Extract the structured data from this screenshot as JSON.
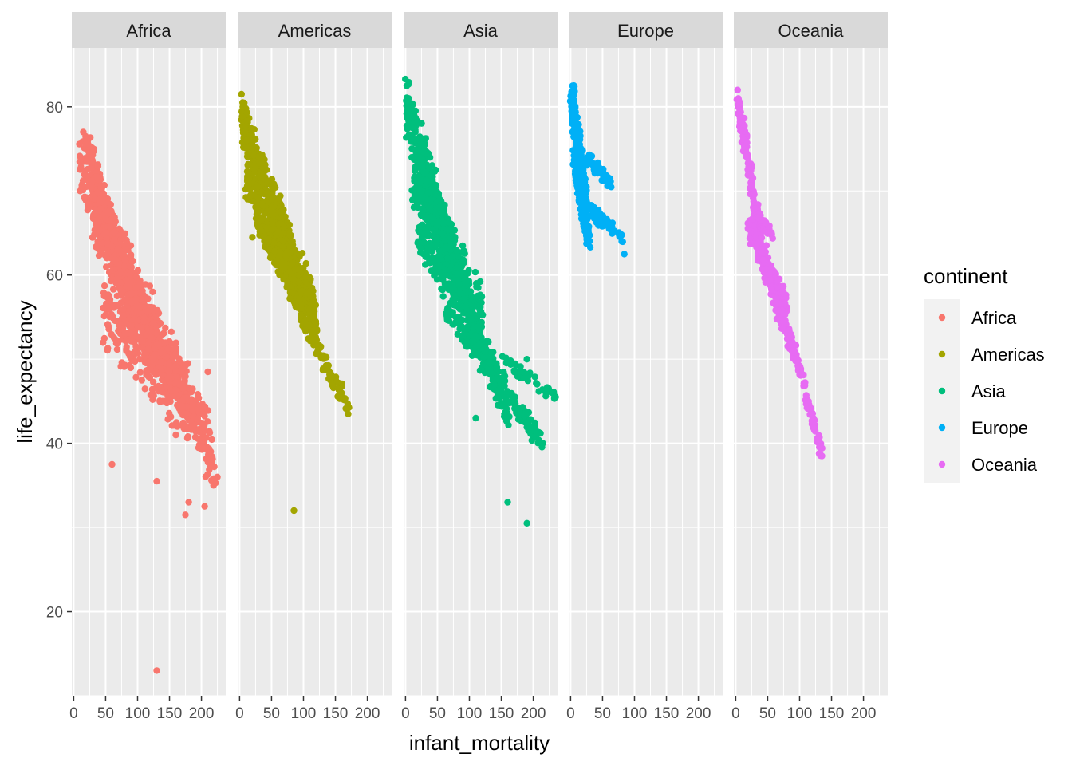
{
  "chart_data": {
    "type": "scatter",
    "facet_by": "continent",
    "xlabel": "infant_mortality",
    "ylabel": "life_expectancy",
    "xlim": [
      -3,
      238
    ],
    "ylim": [
      10,
      87
    ],
    "x_ticks": [
      0,
      50,
      100,
      150,
      200
    ],
    "y_ticks": [
      20,
      40,
      60,
      80
    ],
    "grid": true,
    "legend": {
      "title": "continent",
      "placement": "right"
    },
    "colors": {
      "Africa": "#F8766D",
      "Americas": "#A3A500",
      "Asia": "#00BF7D",
      "Europe": "#00B0F6",
      "Oceania": "#E76BF3"
    },
    "series": [
      {
        "name": "Africa",
        "bands": [
          {
            "x0": 10,
            "y0": 73,
            "x1": 120,
            "y1": 52,
            "spread": 5,
            "n": 320
          },
          {
            "x0": 30,
            "y0": 68,
            "x1": 150,
            "y1": 47,
            "spread": 5,
            "n": 320
          },
          {
            "x0": 55,
            "y0": 66,
            "x1": 215,
            "y1": 40,
            "spread": 4,
            "n": 280
          },
          {
            "x0": 45,
            "y0": 56,
            "x1": 180,
            "y1": 44,
            "spread": 5,
            "n": 240
          },
          {
            "x0": 90,
            "y0": 58,
            "x1": 220,
            "y1": 37,
            "spread": 3,
            "n": 200
          },
          {
            "x0": 20,
            "y0": 76,
            "x1": 70,
            "y1": 62,
            "spread": 3,
            "n": 120
          }
        ],
        "points": [
          [
            10,
            73.5
          ],
          [
            10,
            70
          ],
          [
            15,
            77
          ],
          [
            20,
            76
          ],
          [
            60,
            37.5
          ],
          [
            130,
            13
          ],
          [
            130,
            35.5
          ],
          [
            175,
            31.5
          ],
          [
            180,
            33
          ],
          [
            205,
            32.5
          ],
          [
            210,
            48.5
          ],
          [
            225,
            36
          ],
          [
            150,
            48
          ],
          [
            160,
            41
          ]
        ]
      },
      {
        "name": "Americas",
        "bands": [
          {
            "x0": 5,
            "y0": 78,
            "x1": 120,
            "y1": 55,
            "spread": 3,
            "n": 420
          },
          {
            "x0": 10,
            "y0": 72,
            "x1": 100,
            "y1": 56,
            "spread": 3,
            "n": 300
          },
          {
            "x0": 30,
            "y0": 66,
            "x1": 170,
            "y1": 44,
            "spread": 1.5,
            "n": 160
          }
        ],
        "points": [
          [
            3,
            81.5
          ],
          [
            5,
            80
          ],
          [
            8,
            77
          ],
          [
            85,
            32
          ],
          [
            170,
            43.5
          ],
          [
            20,
            64.5
          ]
        ]
      },
      {
        "name": "Asia",
        "bands": [
          {
            "x0": 2,
            "y0": 80,
            "x1": 80,
            "y1": 60,
            "spread": 4,
            "n": 420
          },
          {
            "x0": 10,
            "y0": 72,
            "x1": 120,
            "y1": 55,
            "spread": 4,
            "n": 320
          },
          {
            "x0": 20,
            "y0": 65,
            "x1": 160,
            "y1": 46,
            "spread": 2.5,
            "n": 200
          },
          {
            "x0": 60,
            "y0": 56,
            "x1": 215,
            "y1": 40,
            "spread": 1.5,
            "n": 140
          },
          {
            "x0": 80,
            "y0": 60,
            "x1": 160,
            "y1": 43,
            "spread": 2,
            "n": 140
          },
          {
            "x0": 150,
            "y0": 50,
            "x1": 235,
            "y1": 45.5,
            "spread": 1,
            "n": 40
          }
        ],
        "points": [
          [
            2,
            82.5
          ],
          [
            5,
            81
          ],
          [
            110,
            43
          ],
          [
            160,
            33
          ],
          [
            190,
            30.5
          ],
          [
            215,
            40
          ],
          [
            235,
            45.5
          ],
          [
            190,
            50
          ]
        ]
      },
      {
        "name": "Europe",
        "bands": [
          {
            "x0": 2,
            "y0": 81,
            "x1": 25,
            "y1": 68,
            "spread": 2.5,
            "n": 300
          },
          {
            "x0": 5,
            "y0": 74,
            "x1": 30,
            "y1": 64,
            "spread": 2,
            "n": 140
          },
          {
            "x0": 20,
            "y0": 74,
            "x1": 62,
            "y1": 71,
            "spread": 1,
            "n": 40
          },
          {
            "x0": 30,
            "y0": 68,
            "x1": 50,
            "y1": 66,
            "spread": 1,
            "n": 20
          },
          {
            "x0": 45,
            "y0": 67,
            "x1": 85,
            "y1": 64,
            "spread": 1,
            "n": 25
          }
        ],
        "points": [
          [
            3,
            82.5
          ],
          [
            84,
            62.5
          ],
          [
            60,
            71
          ],
          [
            80,
            64
          ]
        ]
      },
      {
        "name": "Oceania",
        "bands": [
          {
            "x0": 3,
            "y0": 81,
            "x1": 40,
            "y1": 64,
            "spread": 1.5,
            "n": 140
          },
          {
            "x0": 20,
            "y0": 66,
            "x1": 80,
            "y1": 56,
            "spread": 2,
            "n": 160
          },
          {
            "x0": 40,
            "y0": 62,
            "x1": 95,
            "y1": 50,
            "spread": 1.5,
            "n": 120
          },
          {
            "x0": 85,
            "y0": 53,
            "x1": 135,
            "y1": 38.5,
            "spread": 0.8,
            "n": 80
          },
          {
            "x0": 30,
            "y0": 68,
            "x1": 60,
            "y1": 64,
            "spread": 1,
            "n": 40
          }
        ],
        "points": [
          [
            3,
            82
          ],
          [
            4,
            80
          ],
          [
            135,
            38.5
          ],
          [
            95,
            50
          ]
        ]
      }
    ]
  }
}
